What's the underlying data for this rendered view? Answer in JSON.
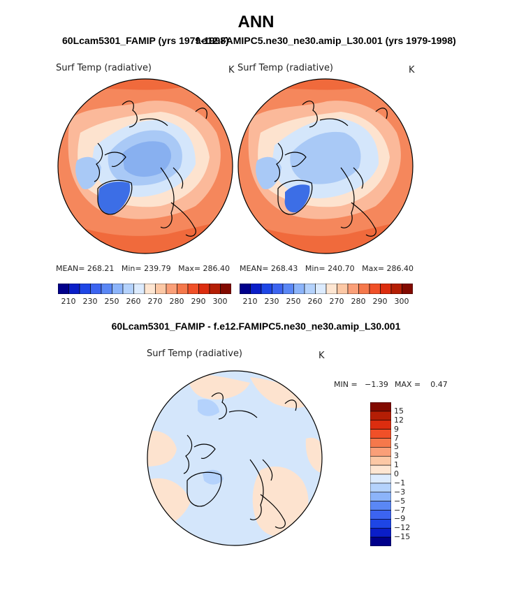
{
  "title": "ANN",
  "case_left": "60Lcam5301_FAMIP (yrs 1979-1998)",
  "case_right": "f.e12.FAMIPC5.ne30_ne30.amip_L30.001 (yrs 1979-1998)",
  "diff_title": "60Lcam5301_FAMIP - f.e12.FAMIPC5.ne30_ne30.amip_L30.001",
  "panels": [
    {
      "var_label": "Surf Temp (radiative)",
      "units": "K",
      "stats": "MEAN= 268.21   Min= 239.79   Max= 286.40"
    },
    {
      "var_label": "Surf Temp (radiative)",
      "units": "K",
      "stats": "MEAN= 268.43   Min= 240.70   Max= 286.40"
    }
  ],
  "colorbar_ticks": [
    "210",
    "230",
    "250",
    "260",
    "270",
    "280",
    "290",
    "300"
  ],
  "colorbar_colors": [
    "#00008b",
    "#0a1ec8",
    "#1e46e6",
    "#3c64f0",
    "#5a87f5",
    "#8cb4fa",
    "#b4d2fc",
    "#dcebfe",
    "#fee6d2",
    "#fcc8a5",
    "#fa9f78",
    "#f5784b",
    "#f05028",
    "#dc2d0f",
    "#b41e05",
    "#820a00"
  ],
  "diff": {
    "var_label": "Surf Temp (radiative)",
    "units": "K",
    "min_text": "MIN =   −1.39",
    "max_text": "MAX =    0.47",
    "legend_labels": [
      "15",
      "12",
      "9",
      "7",
      "5",
      "3",
      "1",
      "0",
      "−1",
      "−3",
      "−5",
      "−7",
      "−9",
      "−12",
      "−15"
    ],
    "legend_colors": [
      "#820a00",
      "#b41e05",
      "#dc2d0f",
      "#f05028",
      "#f5784b",
      "#fa9f78",
      "#fcc8a5",
      "#fee6d2",
      "#dcebfe",
      "#b4d2fc",
      "#8cb4fa",
      "#5a87f5",
      "#3c64f0",
      "#1e46e6",
      "#0a1ec8",
      "#00008b"
    ]
  },
  "map_colors": {
    "red_dark": "#f06a3c",
    "red_mid": "#f5875c",
    "red_light": "#fbb99a",
    "peach": "#fde3cf",
    "blue_pale": "#d4e6fb",
    "blue_light": "#a9c9f6",
    "blue_mid": "#88b0f0",
    "blue_dark": "#3c6ee6"
  }
}
